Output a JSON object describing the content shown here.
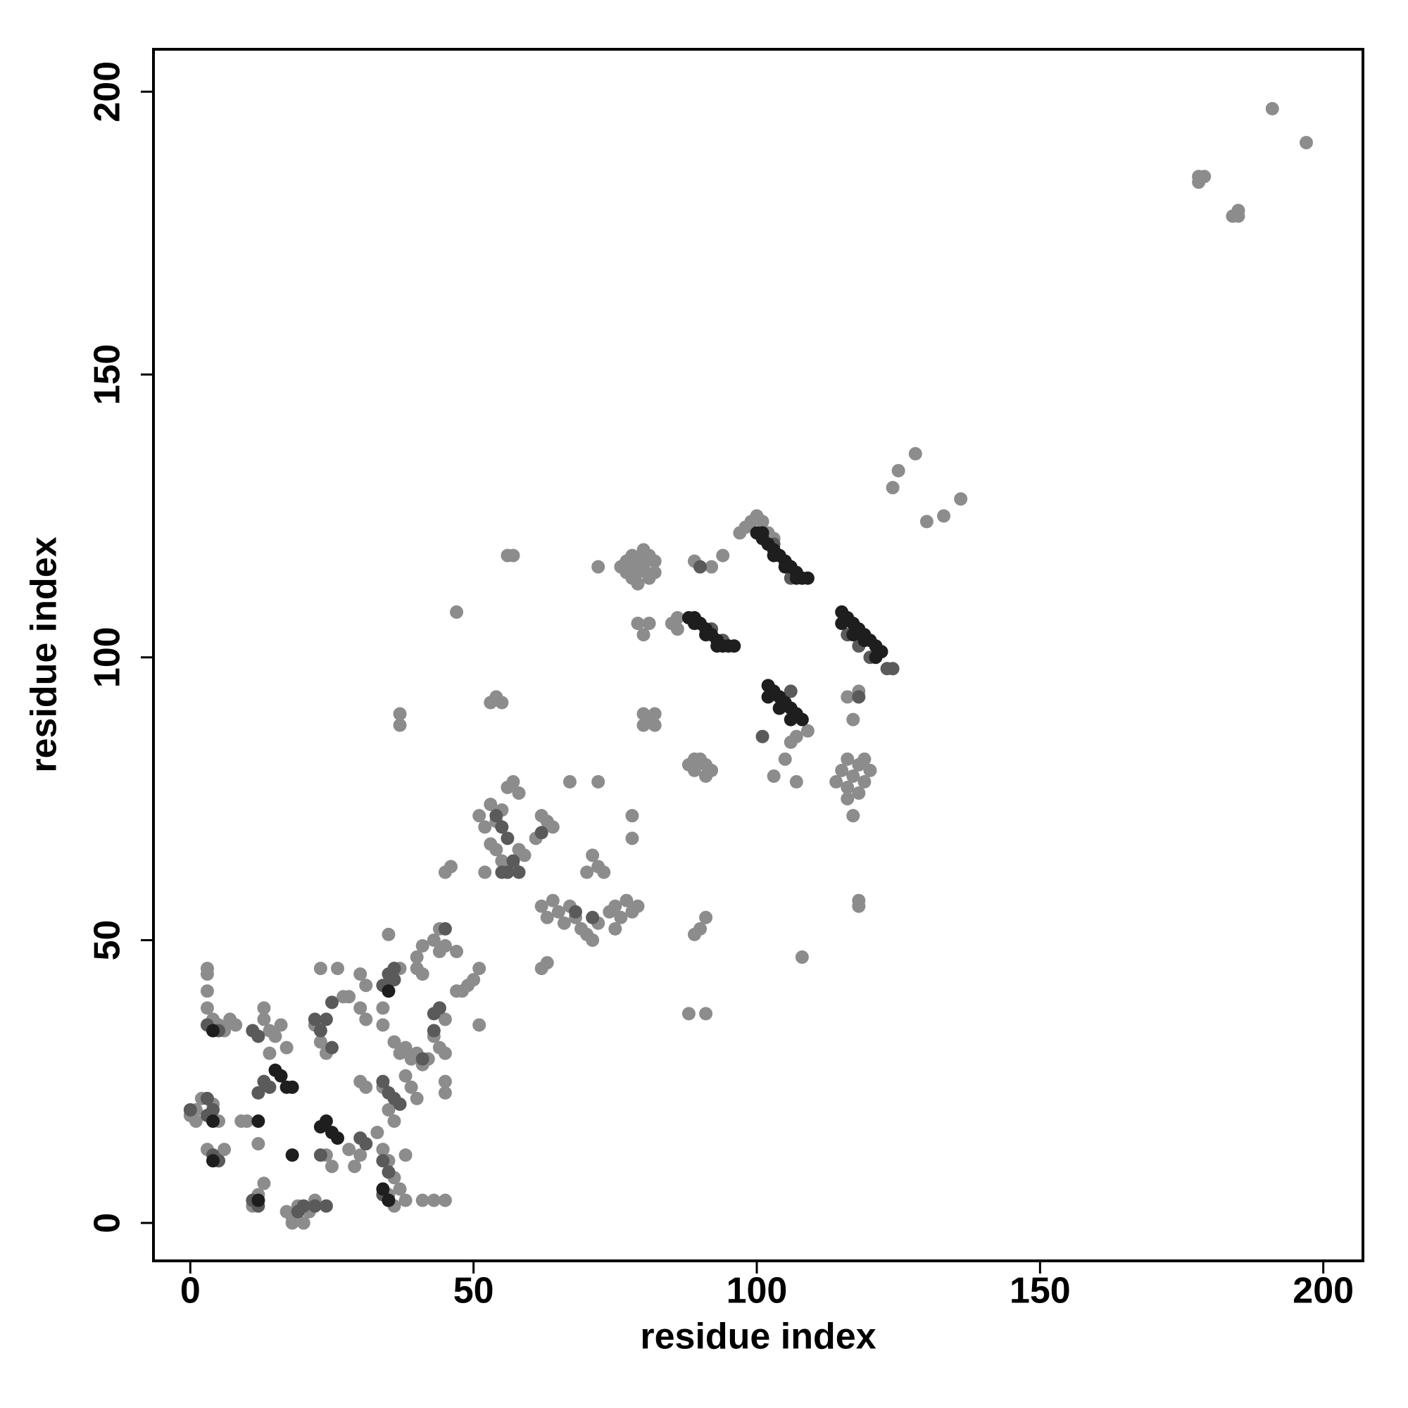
{
  "chart_data": {
    "type": "scatter",
    "xlabel": "residue index",
    "ylabel": "residue index",
    "xlim": [
      -6.5,
      207
    ],
    "ylim": [
      -6.7,
      207.5
    ],
    "xticks": [
      0,
      50,
      100,
      150,
      200
    ],
    "yticks": [
      0,
      50,
      100,
      150,
      200
    ],
    "series": [
      {
        "color": "#8c8c8c",
        "x": [
          191,
          197,
          178,
          179,
          178,
          184,
          185,
          185,
          128,
          125,
          124,
          130,
          133,
          136,
          76,
          77,
          77,
          78,
          78,
          78,
          79,
          79,
          80,
          80,
          81,
          81,
          82,
          82,
          79,
          56,
          57,
          72,
          47,
          79,
          80,
          81,
          85,
          86,
          86,
          89,
          94,
          92,
          98,
          99,
          100,
          101,
          102,
          103,
          97,
          116,
          118,
          117,
          106,
          107,
          105,
          103,
          107,
          109,
          80,
          81,
          82,
          82,
          80,
          88,
          89,
          90,
          91,
          92,
          91,
          89,
          114,
          115,
          116,
          116,
          117,
          118,
          119,
          120,
          119,
          116,
          118,
          117,
          53,
          54,
          55,
          37,
          37,
          51,
          52,
          53,
          54,
          55,
          56,
          57,
          58,
          54,
          55,
          56,
          57,
          58,
          59,
          53,
          52,
          62,
          63,
          64,
          61,
          67,
          72,
          71,
          72,
          70,
          73,
          78,
          78,
          62,
          63,
          64,
          65,
          66,
          67,
          68,
          69,
          70,
          71,
          72,
          74,
          75,
          76,
          77,
          78,
          79,
          75,
          63,
          62,
          90,
          91,
          89,
          118,
          118,
          108,
          88,
          91,
          45,
          46,
          44,
          43,
          41,
          40,
          51,
          50,
          49,
          48,
          47,
          51,
          35,
          36,
          37,
          3,
          3,
          3,
          3,
          4,
          5,
          6,
          7,
          8,
          2,
          1,
          0,
          1,
          4,
          5,
          3,
          4,
          6,
          13,
          13,
          14,
          15,
          16,
          17,
          14,
          22,
          23,
          24,
          23,
          26,
          27,
          28,
          30,
          31,
          30,
          31,
          34,
          36,
          37,
          38,
          39,
          40,
          41,
          42,
          38,
          39,
          40,
          34,
          35,
          36,
          33,
          34,
          35,
          36,
          37,
          38,
          35,
          36,
          43,
          45,
          41,
          28,
          30,
          29,
          38,
          17,
          18,
          19,
          20,
          21,
          22,
          18,
          25,
          24,
          13,
          12,
          11,
          12,
          9,
          10,
          12,
          30,
          31,
          44,
          45,
          44,
          45,
          45,
          45,
          43,
          34,
          47,
          45,
          44,
          40,
          41
        ],
        "values": [
          197,
          191,
          185,
          185,
          184,
          178,
          178,
          179,
          136,
          133,
          130,
          124,
          125,
          128,
          116,
          115,
          117,
          114,
          116,
          118,
          115,
          117,
          119,
          116,
          114,
          118,
          117,
          115,
          113,
          118,
          118,
          116,
          108,
          106,
          104,
          106,
          106,
          107,
          105,
          117,
          118,
          116,
          123,
          124,
          125,
          124,
          122,
          121,
          122,
          93,
          94,
          89,
          85,
          86,
          82,
          79,
          78,
          87,
          90,
          89,
          90,
          88,
          88,
          81,
          80,
          82,
          81,
          80,
          79,
          82,
          78,
          80,
          77,
          82,
          79,
          81,
          78,
          80,
          82,
          75,
          76,
          72,
          92,
          93,
          92,
          90,
          88,
          72,
          70,
          74,
          71,
          73,
          77,
          78,
          76,
          66,
          64,
          62,
          63,
          66,
          65,
          67,
          62,
          72,
          71,
          70,
          68,
          78,
          78,
          65,
          63,
          62,
          62,
          72,
          68,
          56,
          54,
          57,
          55,
          53,
          56,
          54,
          52,
          51,
          50,
          53,
          55,
          56,
          54,
          57,
          55,
          56,
          52,
          46,
          45,
          52,
          54,
          51,
          57,
          56,
          47,
          37,
          37,
          62,
          63,
          52,
          50,
          49,
          47,
          45,
          43,
          42,
          41,
          41,
          35,
          51,
          45,
          45,
          45,
          44,
          41,
          38,
          36,
          35,
          34,
          36,
          35,
          22,
          20,
          19,
          18,
          21,
          18,
          13,
          12,
          13,
          38,
          36,
          34,
          33,
          35,
          31,
          30,
          35,
          32,
          30,
          45,
          45,
          40,
          40,
          44,
          42,
          38,
          36,
          38,
          32,
          30,
          31,
          29,
          30,
          28,
          29,
          26,
          24,
          22,
          24,
          20,
          18,
          16,
          13,
          11,
          8,
          6,
          4,
          5,
          3,
          4,
          4,
          4,
          13,
          12,
          10,
          12,
          2,
          1,
          3,
          0,
          2,
          4,
          0,
          10,
          12,
          7,
          4,
          3,
          5,
          18,
          18,
          14,
          25,
          24,
          38,
          36,
          31,
          30,
          25,
          23,
          33,
          35,
          48,
          49,
          48,
          45,
          44
        ]
      },
      {
        "color": "#5a5a5a",
        "x": [
          3,
          4,
          5,
          3,
          4,
          3,
          4,
          5,
          12,
          13,
          14,
          11,
          12,
          22,
          23,
          24,
          25,
          25,
          34,
          35,
          36,
          34,
          35,
          36,
          37,
          30,
          31,
          34,
          35,
          34,
          35,
          12,
          11,
          23,
          24,
          22,
          19,
          20,
          43,
          44,
          41,
          45,
          43,
          36,
          54,
          55,
          56,
          57,
          58,
          62,
          71,
          68,
          118,
          101,
          104,
          106,
          90,
          103,
          106,
          116,
          120,
          123,
          124,
          118,
          92,
          94,
          0,
          55,
          56
        ],
        "values": [
          35,
          34,
          34,
          22,
          20,
          19,
          12,
          11,
          23,
          25,
          24,
          34,
          33,
          36,
          34,
          36,
          31,
          39,
          42,
          44,
          45,
          25,
          23,
          22,
          21,
          15,
          14,
          11,
          9,
          5,
          4,
          3,
          4,
          12,
          3,
          3,
          2,
          3,
          37,
          38,
          29,
          52,
          34,
          43,
          72,
          70,
          68,
          64,
          62,
          69,
          54,
          55,
          93,
          86,
          91,
          94,
          116,
          120,
          114,
          104,
          100,
          98,
          98,
          102,
          105,
          103,
          20,
          62,
          62
        ]
      },
      {
        "color": "#1e1e1e",
        "x": [
          100,
          101,
          102,
          103,
          104,
          105,
          106,
          107,
          108,
          109,
          101,
          103,
          105,
          107,
          88,
          89,
          90,
          91,
          92,
          93,
          94,
          95,
          96,
          89,
          91,
          93,
          115,
          116,
          117,
          118,
          119,
          120,
          121,
          122,
          115,
          117,
          119,
          121,
          102,
          103,
          104,
          105,
          106,
          107,
          108,
          102,
          104,
          106,
          17,
          16,
          15,
          18,
          12,
          23,
          24,
          25,
          26,
          18,
          4,
          12,
          35,
          34,
          4,
          4,
          35
        ],
        "values": [
          122,
          121,
          120,
          119,
          118,
          117,
          116,
          115,
          114,
          114,
          122,
          118,
          116,
          114,
          107,
          106,
          106,
          105,
          104,
          103,
          102,
          102,
          102,
          107,
          104,
          102,
          108,
          107,
          106,
          105,
          104,
          103,
          102,
          101,
          106,
          104,
          103,
          100,
          95,
          94,
          93,
          92,
          91,
          90,
          89,
          93,
          91,
          89,
          24,
          26,
          27,
          24,
          18,
          17,
          18,
          16,
          15,
          12,
          11,
          4,
          4,
          6,
          18,
          34,
          41
        ]
      }
    ]
  }
}
